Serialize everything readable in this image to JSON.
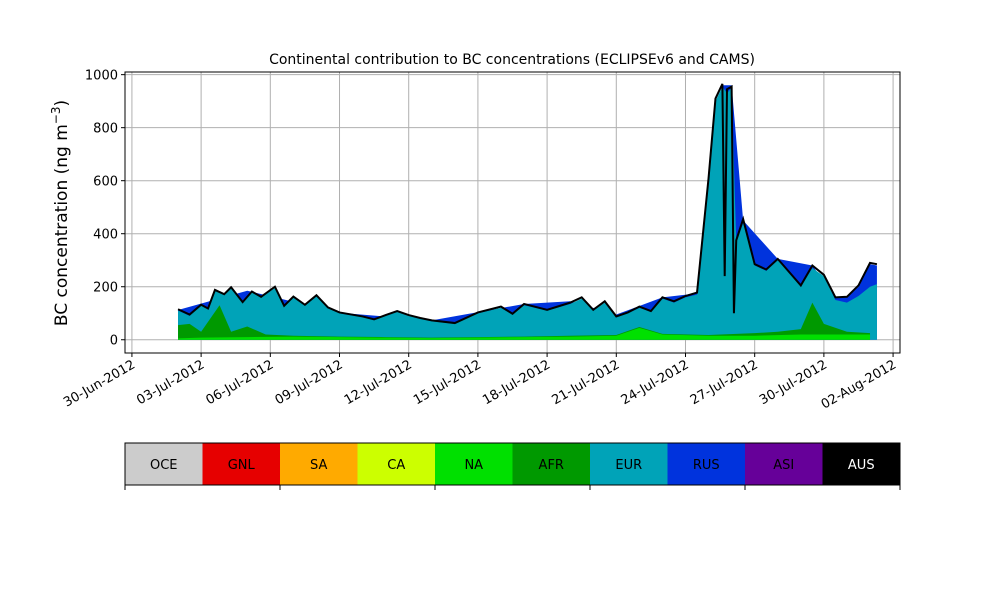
{
  "chart_data": {
    "type": "area",
    "title": "Continental contribution to BC concentrations (ECLIPSEv6 and CAMS)",
    "xlabel": "",
    "ylabel_main": "BC concentration (ng m",
    "ylabel_sup": "−3",
    "ylabel_close": ")",
    "ylim": [
      -50,
      1010
    ],
    "xlim": [
      "2012-06-30",
      "2012-08-02"
    ],
    "grid": true,
    "x_ticks": [
      "30-Jun-2012",
      "03-Jul-2012",
      "06-Jul-2012",
      "09-Jul-2012",
      "12-Jul-2012",
      "15-Jul-2012",
      "18-Jul-2012",
      "21-Jul-2012",
      "24-Jul-2012",
      "27-Jul-2012",
      "30-Jul-2012",
      "02-Aug-2012"
    ],
    "y_ticks": [
      "0",
      "200",
      "400",
      "600",
      "800",
      "1000"
    ],
    "legend": [
      {
        "name": "OCE",
        "color": "#cccccc"
      },
      {
        "name": "GNL",
        "color": "#e60000"
      },
      {
        "name": "SA",
        "color": "#ffaa00"
      },
      {
        "name": "CA",
        "color": "#ccff00"
      },
      {
        "name": "NA",
        "color": "#00e000"
      },
      {
        "name": "AFR",
        "color": "#009900"
      },
      {
        "name": "EUR",
        "color": "#00a3b8"
      },
      {
        "name": "RUS",
        "color": "#0033dd"
      },
      {
        "name": "ASI",
        "color": "#660099"
      },
      {
        "name": "AUS",
        "color": "#000000"
      }
    ],
    "series": [
      {
        "name": "NA",
        "color": "#00e000",
        "points": [
          [
            "2012-07-02",
            5
          ],
          [
            "2012-07-03",
            8
          ],
          [
            "2012-07-05",
            10
          ],
          [
            "2012-07-07",
            12
          ],
          [
            "2012-07-09",
            10
          ],
          [
            "2012-07-11",
            8
          ],
          [
            "2012-07-13",
            6
          ],
          [
            "2012-07-15",
            8
          ],
          [
            "2012-07-17",
            10
          ],
          [
            "2012-07-19",
            12
          ],
          [
            "2012-07-21",
            15
          ],
          [
            "2012-07-22",
            45
          ],
          [
            "2012-07-23",
            20
          ],
          [
            "2012-07-25",
            15
          ],
          [
            "2012-07-27",
            15
          ],
          [
            "2012-07-29",
            20
          ],
          [
            "2012-07-31",
            20
          ],
          [
            "2012-08-01",
            20
          ]
        ]
      },
      {
        "name": "AFR",
        "color": "#009900",
        "points": [
          [
            "2012-07-02",
            55
          ],
          [
            "2012-07-02.5",
            60
          ],
          [
            "2012-07-03",
            30
          ],
          [
            "2012-07-03.8",
            130
          ],
          [
            "2012-07-04.3",
            30
          ],
          [
            "2012-07-05",
            50
          ],
          [
            "2012-07-05.8",
            20
          ],
          [
            "2012-07-07",
            15
          ],
          [
            "2012-07-09",
            12
          ],
          [
            "2012-07-11",
            10
          ],
          [
            "2012-07-13",
            8
          ],
          [
            "2012-07-15",
            10
          ],
          [
            "2012-07-17",
            12
          ],
          [
            "2012-07-19",
            15
          ],
          [
            "2012-07-21",
            18
          ],
          [
            "2012-07-22",
            48
          ],
          [
            "2012-07-23",
            22
          ],
          [
            "2012-07-25",
            18
          ],
          [
            "2012-07-27",
            25
          ],
          [
            "2012-07-28",
            30
          ],
          [
            "2012-07-29",
            40
          ],
          [
            "2012-07-29.5",
            140
          ],
          [
            "2012-07-30",
            60
          ],
          [
            "2012-07-31",
            30
          ],
          [
            "2012-08-01",
            25
          ]
        ]
      },
      {
        "name": "EUR",
        "color": "#00a3b8",
        "points": [
          [
            "2012-07-02",
            110
          ],
          [
            "2012-07-02.5",
            90
          ],
          [
            "2012-07-03",
            130
          ],
          [
            "2012-07-03.3",
            115
          ],
          [
            "2012-07-03.6",
            185
          ],
          [
            "2012-07-04",
            170
          ],
          [
            "2012-07-04.3",
            195
          ],
          [
            "2012-07-04.8",
            140
          ],
          [
            "2012-07-05.2",
            180
          ],
          [
            "2012-07-05.6",
            160
          ],
          [
            "2012-07-06.2",
            195
          ],
          [
            "2012-07-06.6",
            125
          ],
          [
            "2012-07-07",
            160
          ],
          [
            "2012-07-07.5",
            130
          ],
          [
            "2012-07-08",
            165
          ],
          [
            "2012-07-08.5",
            120
          ],
          [
            "2012-07-09",
            100
          ],
          [
            "2012-07-10",
            85
          ],
          [
            "2012-07-10.5",
            75
          ],
          [
            "2012-07-11",
            90
          ],
          [
            "2012-07-11.5",
            105
          ],
          [
            "2012-07-12",
            90
          ],
          [
            "2012-07-12.5",
            80
          ],
          [
            "2012-07-13",
            70
          ],
          [
            "2012-07-14",
            60
          ],
          [
            "2012-07-15",
            100
          ],
          [
            "2012-07-16",
            120
          ],
          [
            "2012-07-16.5",
            95
          ],
          [
            "2012-07-17",
            130
          ],
          [
            "2012-07-18",
            110
          ],
          [
            "2012-07-19",
            135
          ],
          [
            "2012-07-19.5",
            155
          ],
          [
            "2012-07-20",
            110
          ],
          [
            "2012-07-20.5",
            140
          ],
          [
            "2012-07-21",
            85
          ],
          [
            "2012-07-21.5",
            100
          ],
          [
            "2012-07-22",
            120
          ],
          [
            "2012-07-22.5",
            105
          ],
          [
            "2012-07-23",
            155
          ],
          [
            "2012-07-23.5",
            140
          ],
          [
            "2012-07-24",
            160
          ],
          [
            "2012-07-24.5",
            170
          ],
          [
            "2012-07-25",
            600
          ],
          [
            "2012-07-25.3",
            900
          ],
          [
            "2012-07-25.6",
            955
          ],
          [
            "2012-07-25.8",
            930
          ],
          [
            "2012-07-26",
            950
          ],
          [
            "2012-07-26.2",
            370
          ],
          [
            "2012-07-26.5",
            440
          ],
          [
            "2012-07-27",
            280
          ],
          [
            "2012-07-27.5",
            260
          ],
          [
            "2012-07-28",
            300
          ],
          [
            "2012-07-28.5",
            250
          ],
          [
            "2012-07-29",
            200
          ],
          [
            "2012-07-29.5",
            270
          ],
          [
            "2012-07-30",
            240
          ],
          [
            "2012-07-30.5",
            150
          ],
          [
            "2012-07-31",
            140
          ],
          [
            "2012-07-31.5",
            165
          ],
          [
            "2012-08-01",
            200
          ],
          [
            "2012-08-01.3",
            210
          ]
        ]
      },
      {
        "name": "RUS",
        "color": "#0033dd",
        "points": [
          [
            "2012-07-02",
            112
          ],
          [
            "2012-07-05",
            185
          ],
          [
            "2012-07-09",
            102
          ],
          [
            "2012-07-13",
            73
          ],
          [
            "2012-07-17",
            135
          ],
          [
            "2012-07-19",
            145
          ],
          [
            "2012-07-21",
            95
          ],
          [
            "2012-07-23",
            160
          ],
          [
            "2012-07-24.5",
            175
          ],
          [
            "2012-07-25.6",
            960
          ],
          [
            "2012-07-26",
            960
          ],
          [
            "2012-07-26.5",
            450
          ],
          [
            "2012-07-28",
            305
          ],
          [
            "2012-07-29.5",
            280
          ],
          [
            "2012-07-30.5",
            160
          ],
          [
            "2012-07-31",
            160
          ],
          [
            "2012-07-31.5",
            200
          ],
          [
            "2012-08-01",
            285
          ],
          [
            "2012-08-01.3",
            280
          ]
        ]
      }
    ],
    "total_line": [
      [
        "2012-07-02",
        115
      ],
      [
        "2012-07-02.5",
        95
      ],
      [
        "2012-07-03",
        132
      ],
      [
        "2012-07-03.3",
        118
      ],
      [
        "2012-07-03.6",
        188
      ],
      [
        "2012-07-04",
        172
      ],
      [
        "2012-07-04.3",
        198
      ],
      [
        "2012-07-04.8",
        142
      ],
      [
        "2012-07-05.2",
        182
      ],
      [
        "2012-07-05.6",
        162
      ],
      [
        "2012-07-06.2",
        200
      ],
      [
        "2012-07-06.6",
        128
      ],
      [
        "2012-07-07",
        163
      ],
      [
        "2012-07-07.5",
        132
      ],
      [
        "2012-07-08",
        168
      ],
      [
        "2012-07-08.5",
        122
      ],
      [
        "2012-07-09",
        103
      ],
      [
        "2012-07-10",
        88
      ],
      [
        "2012-07-10.5",
        77
      ],
      [
        "2012-07-11",
        93
      ],
      [
        "2012-07-11.5",
        108
      ],
      [
        "2012-07-12",
        93
      ],
      [
        "2012-07-12.5",
        82
      ],
      [
        "2012-07-13",
        73
      ],
      [
        "2012-07-14",
        63
      ],
      [
        "2012-07-15",
        103
      ],
      [
        "2012-07-16",
        125
      ],
      [
        "2012-07-16.5",
        98
      ],
      [
        "2012-07-17",
        135
      ],
      [
        "2012-07-18",
        113
      ],
      [
        "2012-07-19",
        140
      ],
      [
        "2012-07-19.5",
        160
      ],
      [
        "2012-07-20",
        113
      ],
      [
        "2012-07-20.5",
        145
      ],
      [
        "2012-07-21",
        88
      ],
      [
        "2012-07-21.5",
        103
      ],
      [
        "2012-07-22",
        125
      ],
      [
        "2012-07-22.5",
        108
      ],
      [
        "2012-07-23",
        160
      ],
      [
        "2012-07-23.5",
        145
      ],
      [
        "2012-07-24",
        165
      ],
      [
        "2012-07-24.5",
        178
      ],
      [
        "2012-07-25",
        610
      ],
      [
        "2012-07-25.3",
        910
      ],
      [
        "2012-07-25.6",
        965
      ],
      [
        "2012-07-25.7",
        240
      ],
      [
        "2012-07-25.8",
        945
      ],
      [
        "2012-07-26",
        955
      ],
      [
        "2012-07-26.1",
        100
      ],
      [
        "2012-07-26.2",
        375
      ],
      [
        "2012-07-26.5",
        455
      ],
      [
        "2012-07-27",
        285
      ],
      [
        "2012-07-27.5",
        265
      ],
      [
        "2012-07-28",
        305
      ],
      [
        "2012-07-28.5",
        255
      ],
      [
        "2012-07-29",
        205
      ],
      [
        "2012-07-29.5",
        280
      ],
      [
        "2012-07-30",
        245
      ],
      [
        "2012-07-30.5",
        160
      ],
      [
        "2012-07-31",
        162
      ],
      [
        "2012-07-31.5",
        205
      ],
      [
        "2012-08-01",
        290
      ],
      [
        "2012-08-01.3",
        285
      ]
    ]
  }
}
